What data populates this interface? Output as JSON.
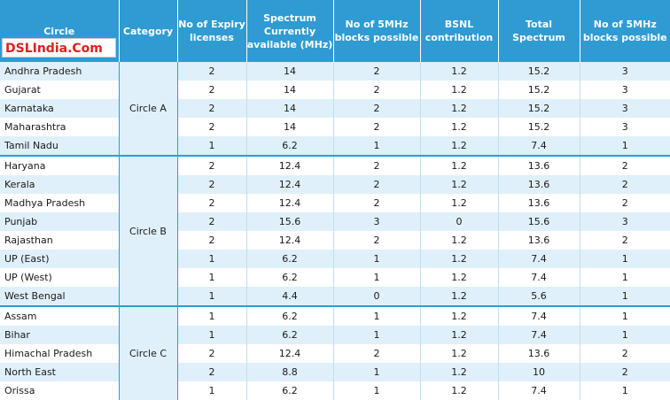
{
  "watermark": "DSLIndia.Com",
  "headers": {
    "circle": "Circle",
    "category": "Category",
    "expiry": "No of Expiry licenses",
    "spectrum": "Spectrum Currently available (MHz)",
    "blocks1": "No of 5MHz blocks possible",
    "bsnl": "BSNL contribution",
    "total": "Total Spectrum",
    "blocks2": "No of 5MHz blocks possible"
  },
  "colors": {
    "header_bg": "#2f9bd2",
    "header_text": "#ffffff",
    "band_bg": "#dff0fa",
    "watermark_text": "#e0201c"
  },
  "groups": [
    {
      "category": "Circle A",
      "rows": [
        {
          "circle": "Andhra Pradesh",
          "expiry": "2",
          "spectrum": "14",
          "blocks1": "2",
          "bsnl": "1.2",
          "total": "15.2",
          "blocks2": "3"
        },
        {
          "circle": "Gujarat",
          "expiry": "2",
          "spectrum": "14",
          "blocks1": "2",
          "bsnl": "1.2",
          "total": "15.2",
          "blocks2": "3"
        },
        {
          "circle": "Karnataka",
          "expiry": "2",
          "spectrum": "14",
          "blocks1": "2",
          "bsnl": "1.2",
          "total": "15.2",
          "blocks2": "3"
        },
        {
          "circle": "Maharashtra",
          "expiry": "2",
          "spectrum": "14",
          "blocks1": "2",
          "bsnl": "1.2",
          "total": "15.2",
          "blocks2": "3"
        },
        {
          "circle": "Tamil Nadu",
          "expiry": "1",
          "spectrum": "6.2",
          "blocks1": "1",
          "bsnl": "1.2",
          "total": "7.4",
          "blocks2": "1"
        }
      ]
    },
    {
      "category": "Circle B",
      "rows": [
        {
          "circle": "Haryana",
          "expiry": "2",
          "spectrum": "12.4",
          "blocks1": "2",
          "bsnl": "1.2",
          "total": "13.6",
          "blocks2": "2"
        },
        {
          "circle": "Kerala",
          "expiry": "2",
          "spectrum": "12.4",
          "blocks1": "2",
          "bsnl": "1.2",
          "total": "13.6",
          "blocks2": "2"
        },
        {
          "circle": "Madhya Pradesh",
          "expiry": "2",
          "spectrum": "12.4",
          "blocks1": "2",
          "bsnl": "1.2",
          "total": "13.6",
          "blocks2": "2"
        },
        {
          "circle": "Punjab",
          "expiry": "2",
          "spectrum": "15.6",
          "blocks1": "3",
          "bsnl": "0",
          "total": "15.6",
          "blocks2": "3"
        },
        {
          "circle": "Rajasthan",
          "expiry": "2",
          "spectrum": "12.4",
          "blocks1": "2",
          "bsnl": "1.2",
          "total": "13.6",
          "blocks2": "2"
        },
        {
          "circle": "UP (East)",
          "expiry": "1",
          "spectrum": "6.2",
          "blocks1": "1",
          "bsnl": "1.2",
          "total": "7.4",
          "blocks2": "1"
        },
        {
          "circle": "UP (West)",
          "expiry": "1",
          "spectrum": "6.2",
          "blocks1": "1",
          "bsnl": "1.2",
          "total": "7.4",
          "blocks2": "1"
        },
        {
          "circle": "West Bengal",
          "expiry": "1",
          "spectrum": "4.4",
          "blocks1": "0",
          "bsnl": "1.2",
          "total": "5.6",
          "blocks2": "1"
        }
      ]
    },
    {
      "category": "Circle C",
      "rows": [
        {
          "circle": "Assam",
          "expiry": "1",
          "spectrum": "6.2",
          "blocks1": "1",
          "bsnl": "1.2",
          "total": "7.4",
          "blocks2": "1"
        },
        {
          "circle": "Bihar",
          "expiry": "1",
          "spectrum": "6.2",
          "blocks1": "1",
          "bsnl": "1.2",
          "total": "7.4",
          "blocks2": "1"
        },
        {
          "circle": "Himachal Pradesh",
          "expiry": "2",
          "spectrum": "12.4",
          "blocks1": "2",
          "bsnl": "1.2",
          "total": "13.6",
          "blocks2": "2"
        },
        {
          "circle": "North East",
          "expiry": "2",
          "spectrum": "8.8",
          "blocks1": "1",
          "bsnl": "1.2",
          "total": "10",
          "blocks2": "2"
        },
        {
          "circle": "Orissa",
          "expiry": "1",
          "spectrum": "6.2",
          "blocks1": "1",
          "bsnl": "1.2",
          "total": "7.4",
          "blocks2": "1"
        }
      ]
    }
  ]
}
